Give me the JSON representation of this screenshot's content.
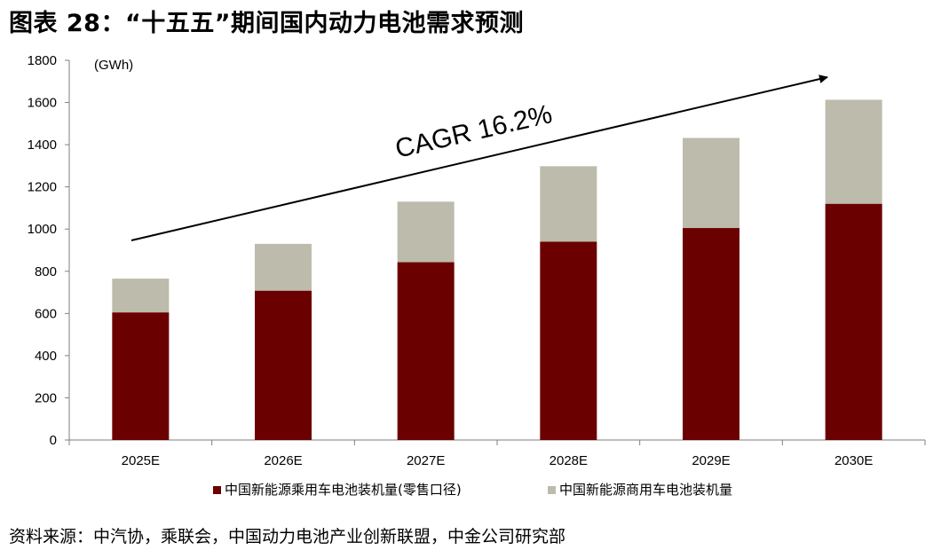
{
  "title": "图表 28：“十五五”期间国内动力电池需求预测",
  "source": "资料来源：中汽协，乘联会，中国动力电池产业创新联盟，中金公司研究部",
  "chart_data": {
    "type": "bar",
    "stacked": true,
    "title": "图表 28：“十五五”期间国内动力电池需求预测",
    "xlabel": "",
    "ylabel": "",
    "unit_label": "(GWh)",
    "categories": [
      "2025E",
      "2026E",
      "2027E",
      "2028E",
      "2029E",
      "2030E"
    ],
    "ylim": [
      0,
      1800
    ],
    "yticks": [
      0,
      200,
      400,
      600,
      800,
      1000,
      1200,
      1400,
      1600,
      1800
    ],
    "grid": false,
    "legend_position": "bottom",
    "series": [
      {
        "name": "中国新能源乘用车电池装机量(零售口径)",
        "color": "#6b0000",
        "values": [
          605,
          708,
          843,
          940,
          1005,
          1120
        ]
      },
      {
        "name": "中国新能源商用车电池装机量",
        "color": "#bdbbab",
        "values": [
          160,
          222,
          287,
          358,
          427,
          493
        ]
      }
    ],
    "annotations": [
      {
        "text": "CAGR 16.2%",
        "type": "trend-arrow"
      }
    ]
  }
}
